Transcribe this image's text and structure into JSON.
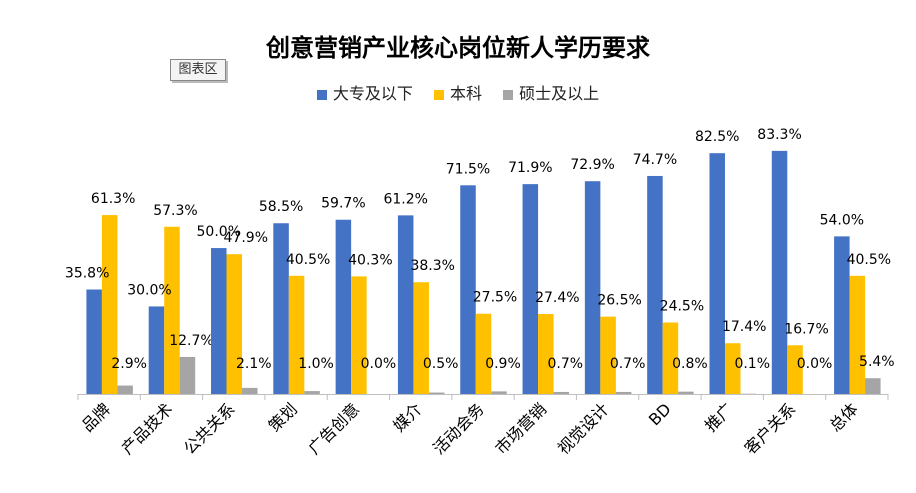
{
  "ui": {
    "chart_area_label": "图表区"
  },
  "chart_data": {
    "type": "bar",
    "title": "创意营销产业核心岗位新人学历要求",
    "categories": [
      "品牌",
      "产品技术",
      "公共关系",
      "策划",
      "广告创意",
      "媒介",
      "活动会务",
      "市场营销",
      "视觉设计",
      "BD",
      "推广",
      "客户关系",
      "总体"
    ],
    "series": [
      {
        "name": "大专及以下",
        "color": "#4472C4",
        "values": [
          35.8,
          30.0,
          50.0,
          58.5,
          59.7,
          61.2,
          71.5,
          71.9,
          72.9,
          74.7,
          82.5,
          83.3,
          54.0
        ],
        "labels": [
          "35.8%",
          "30.0%",
          "50.0%",
          "58.5%",
          "59.7%",
          "61.2%",
          "71.5%",
          "71.9%",
          "72.9%",
          "74.7%",
          "82.5%",
          "83.3%",
          "54.0%"
        ]
      },
      {
        "name": "本科",
        "color": "#FFC000",
        "values": [
          61.3,
          57.3,
          47.9,
          40.5,
          40.3,
          38.3,
          27.5,
          27.4,
          26.5,
          24.5,
          17.4,
          16.7,
          40.5
        ],
        "labels": [
          "61.3%",
          "57.3%",
          "47.9%",
          "40.5%",
          "40.3%",
          "38.3%",
          "27.5%",
          "27.4%",
          "26.5%",
          "24.5%",
          "17.4%",
          "16.7%",
          "40.5%"
        ]
      },
      {
        "name": "硕士及以上",
        "color": "#A5A5A5",
        "values": [
          2.9,
          12.7,
          2.1,
          1.0,
          0.0,
          0.5,
          0.9,
          0.7,
          0.7,
          0.8,
          0.1,
          0.0,
          5.4
        ],
        "labels": [
          "2.9%",
          "12.7%",
          "2.1%",
          "1.0%",
          "0.0%",
          "0.5%",
          "0.9%",
          "0.7%",
          "0.7%",
          "0.8%",
          "0.1%",
          "0.0%",
          "5.4%"
        ]
      }
    ],
    "ylim": [
      0,
      100
    ],
    "grid": false,
    "legend_position": "top"
  }
}
